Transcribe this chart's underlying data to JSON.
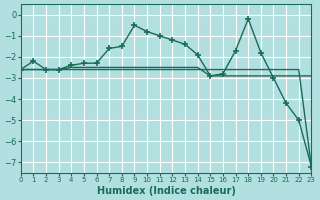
{
  "xlabel": "Humidex (Indice chaleur)",
  "background_color": "#b2e0e0",
  "grid_color": "#ffffff",
  "line_color": "#1a6b5a",
  "xlim": [
    0,
    23
  ],
  "ylim": [
    -7.5,
    0.5
  ],
  "yticks": [
    0,
    -1,
    -2,
    -3,
    -4,
    -5,
    -6,
    -7
  ],
  "xticks": [
    0,
    1,
    2,
    3,
    4,
    5,
    6,
    7,
    8,
    9,
    10,
    11,
    12,
    13,
    14,
    15,
    16,
    17,
    18,
    19,
    20,
    21,
    22,
    23
  ],
  "line1_x": [
    0,
    1,
    2,
    3,
    4,
    5,
    6,
    7,
    8,
    9,
    10,
    11,
    12,
    13,
    14,
    15,
    16,
    17,
    18,
    19,
    20,
    21,
    22,
    23
  ],
  "line1_y": [
    -2.6,
    -2.2,
    -2.6,
    -2.6,
    -2.4,
    -2.3,
    -2.3,
    -1.6,
    -1.5,
    -0.5,
    -0.8,
    -1.0,
    -1.2,
    -1.4,
    -1.9,
    -2.9,
    -2.8,
    -1.7,
    -0.2,
    -1.8,
    -3.0,
    -4.2,
    -5.0,
    -7.2
  ],
  "line2_x": [
    0,
    1,
    2,
    3,
    4,
    5,
    6,
    7,
    8,
    9,
    10,
    11,
    12,
    13,
    14,
    15,
    16,
    17,
    18,
    19,
    20,
    21,
    22,
    23
  ],
  "line2_y": [
    -2.6,
    -2.6,
    -2.6,
    -2.6,
    -2.5,
    -2.5,
    -2.5,
    -2.5,
    -2.5,
    -2.5,
    -2.5,
    -2.5,
    -2.5,
    -2.5,
    -2.5,
    -2.9,
    -2.9,
    -2.9,
    -2.9,
    -2.9,
    -2.9,
    -2.9,
    -2.9,
    -2.9
  ],
  "line3_x": [
    0,
    1,
    2,
    3,
    4,
    5,
    6,
    7,
    8,
    9,
    10,
    11,
    12,
    13,
    14,
    15,
    16,
    17,
    18,
    19,
    20,
    21,
    22,
    23
  ],
  "line3_y": [
    -2.6,
    -2.6,
    -2.6,
    -2.6,
    -2.6,
    -2.6,
    -2.6,
    -2.6,
    -2.6,
    -2.6,
    -2.6,
    -2.6,
    -2.6,
    -2.6,
    -2.6,
    -2.6,
    -2.6,
    -2.6,
    -2.6,
    -2.6,
    -2.6,
    -2.6,
    -2.6,
    -7.2
  ]
}
